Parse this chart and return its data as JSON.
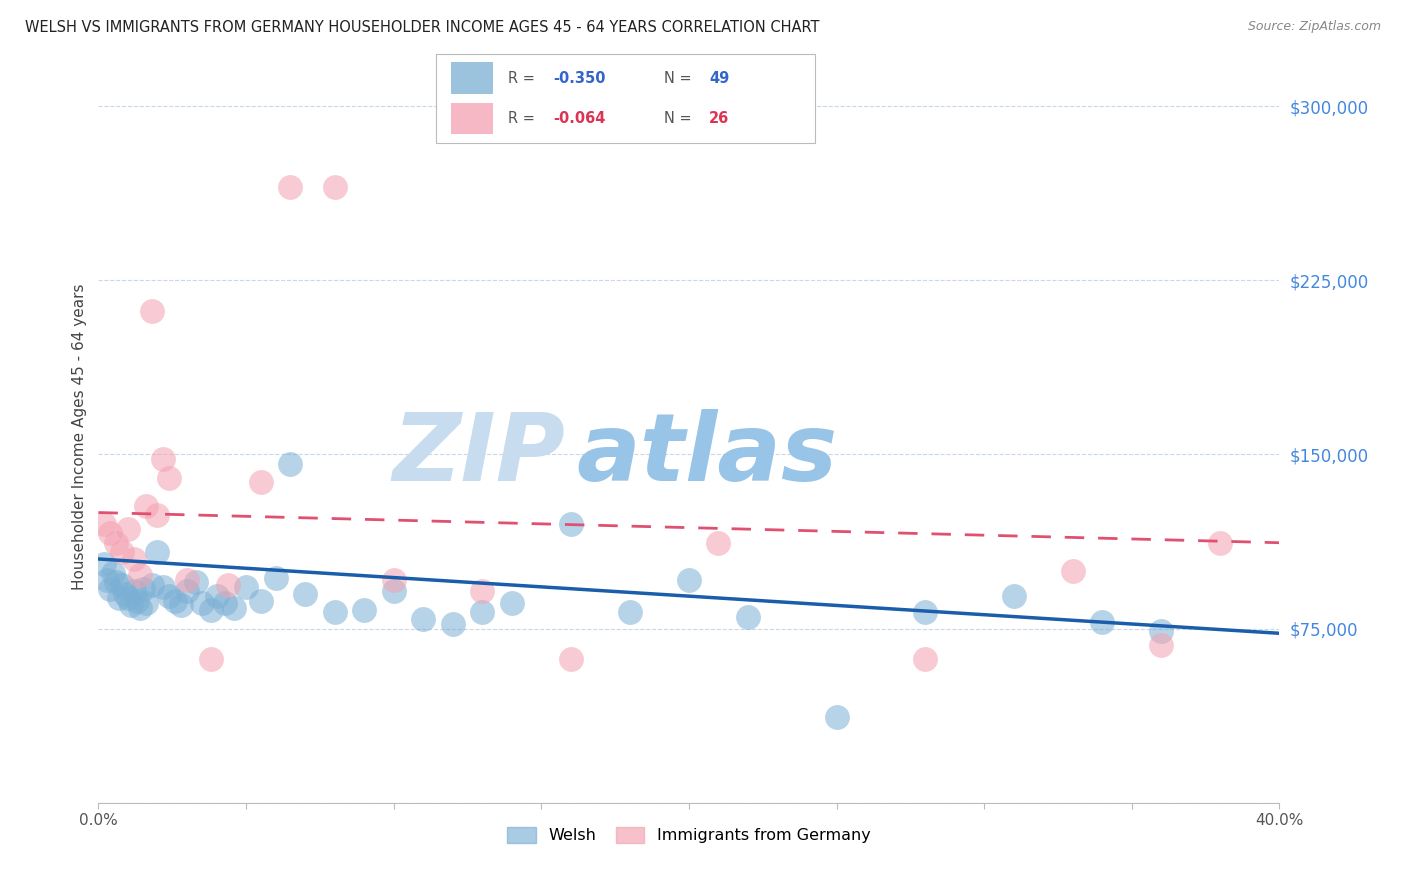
{
  "title": "WELSH VS IMMIGRANTS FROM GERMANY HOUSEHOLDER INCOME AGES 45 - 64 YEARS CORRELATION CHART",
  "source": "Source: ZipAtlas.com",
  "ylabel": "Householder Income Ages 45 - 64 years",
  "xlim": [
    0.0,
    0.4
  ],
  "ylim": [
    0,
    315000
  ],
  "ytick_vals": [
    0,
    75000,
    150000,
    225000,
    300000
  ],
  "ytick_labels": [
    "",
    "$75,000",
    "$150,000",
    "$225,000",
    "$300,000"
  ],
  "xtick_vals": [
    0.0,
    0.05,
    0.1,
    0.15,
    0.2,
    0.25,
    0.3,
    0.35,
    0.4
  ],
  "xtick_labels": [
    "0.0%",
    "",
    "",
    "",
    "",
    "",
    "",
    "",
    "40.0%"
  ],
  "welsh_N": 49,
  "germany_N": 26,
  "blue_scatter_color": "#7BAFD4",
  "pink_scatter_color": "#F4A0B0",
  "blue_line_color": "#1A5DAB",
  "pink_line_color": "#E05070",
  "background_color": "#FFFFFF",
  "grid_color": "#C8D8E8",
  "title_color": "#222222",
  "source_color": "#888888",
  "ytick_color": "#4488DD",
  "xtick_color": "#555555",
  "welsh_x": [
    0.002,
    0.003,
    0.004,
    0.005,
    0.006,
    0.007,
    0.008,
    0.009,
    0.01,
    0.011,
    0.012,
    0.013,
    0.014,
    0.015,
    0.016,
    0.018,
    0.02,
    0.022,
    0.024,
    0.026,
    0.028,
    0.03,
    0.033,
    0.035,
    0.038,
    0.04,
    0.043,
    0.046,
    0.05,
    0.055,
    0.06,
    0.065,
    0.07,
    0.08,
    0.09,
    0.1,
    0.11,
    0.12,
    0.13,
    0.14,
    0.16,
    0.18,
    0.2,
    0.22,
    0.25,
    0.28,
    0.31,
    0.34,
    0.36
  ],
  "welsh_y": [
    103000,
    96000,
    92000,
    99000,
    95000,
    88000,
    94000,
    90000,
    88000,
    85000,
    91000,
    87000,
    84000,
    92000,
    86000,
    94000,
    108000,
    93000,
    89000,
    87000,
    85000,
    91000,
    95000,
    86000,
    83000,
    89000,
    86000,
    84000,
    93000,
    87000,
    97000,
    146000,
    90000,
    82000,
    83000,
    91000,
    79000,
    77000,
    82000,
    86000,
    120000,
    82000,
    96000,
    80000,
    37000,
    82000,
    89000,
    78000,
    74000
  ],
  "germany_x": [
    0.002,
    0.004,
    0.006,
    0.008,
    0.01,
    0.012,
    0.014,
    0.016,
    0.018,
    0.02,
    0.022,
    0.024,
    0.03,
    0.038,
    0.044,
    0.055,
    0.065,
    0.08,
    0.1,
    0.13,
    0.16,
    0.21,
    0.28,
    0.33,
    0.36,
    0.38
  ],
  "germany_y": [
    120000,
    116000,
    112000,
    108000,
    118000,
    105000,
    98000,
    128000,
    212000,
    124000,
    148000,
    140000,
    96000,
    62000,
    94000,
    138000,
    265000,
    265000,
    96000,
    91000,
    62000,
    112000,
    62000,
    100000,
    68000,
    112000
  ]
}
